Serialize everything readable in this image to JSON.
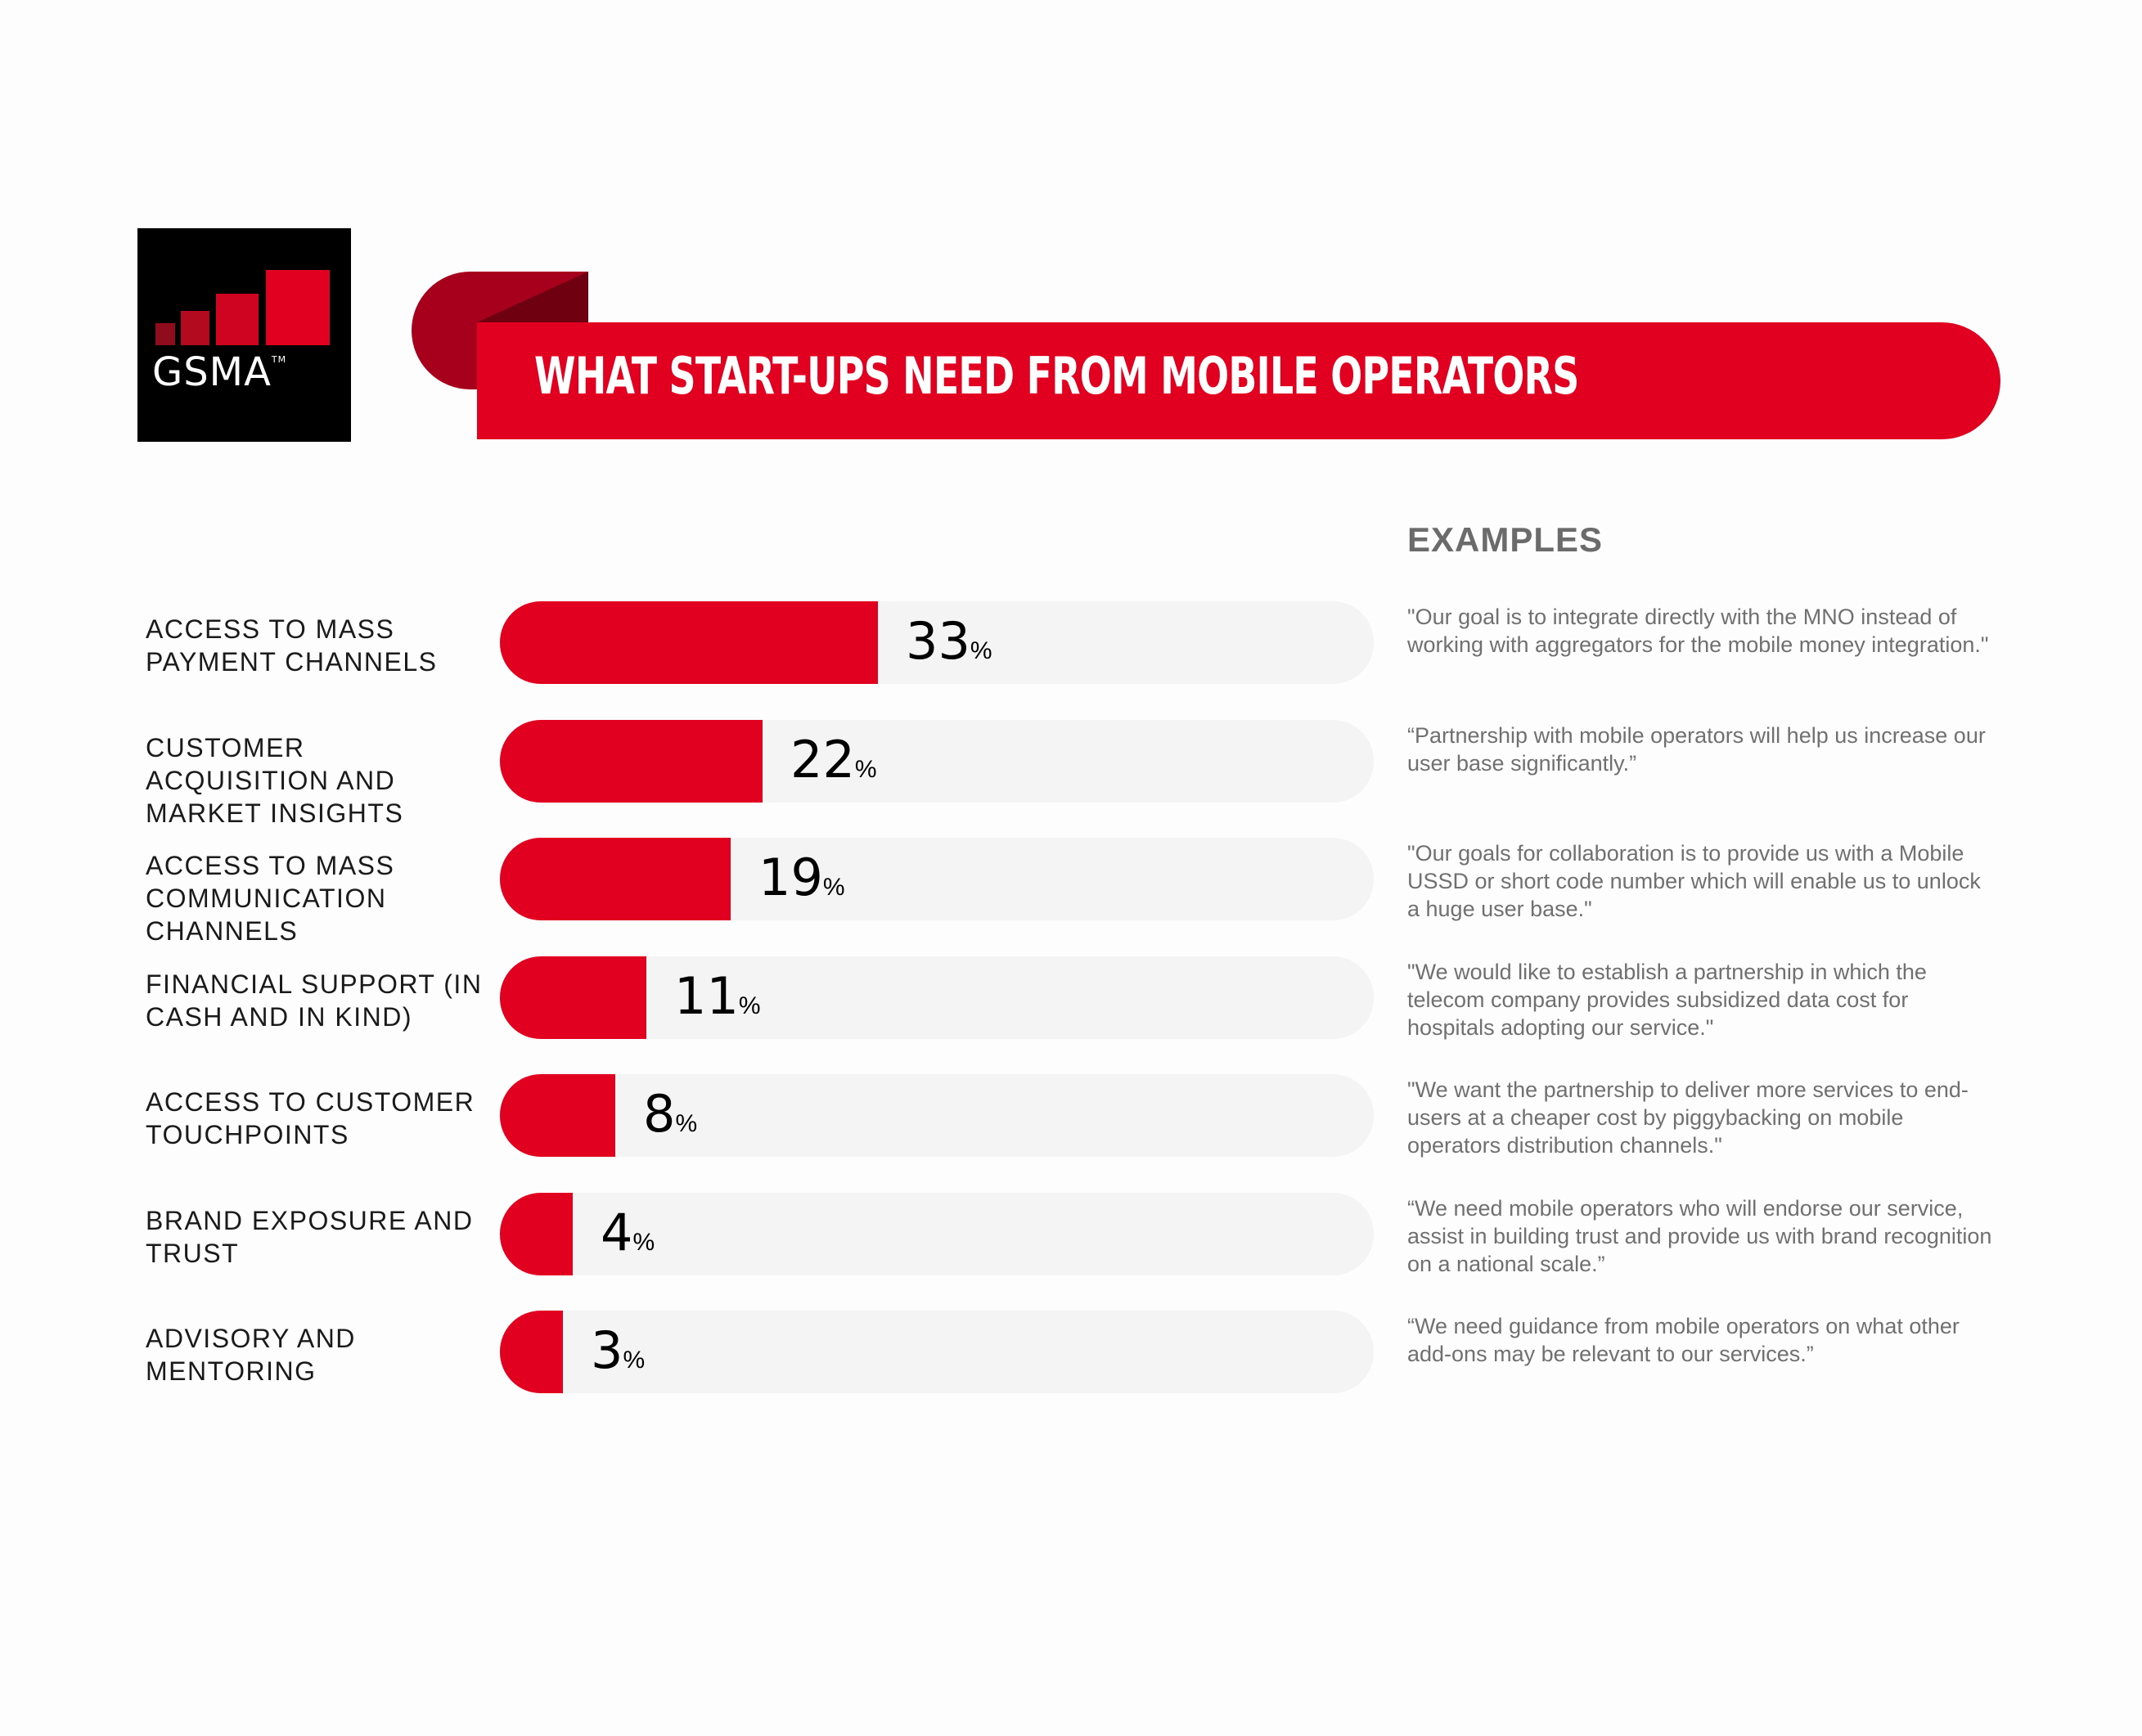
{
  "logo": {
    "text": "GSMA",
    "tm": "TM"
  },
  "banner": {
    "title": "WHAT START-UPS NEED FROM MOBILE OPERATORS"
  },
  "examples_heading": "EXAMPLES",
  "percent_symbol": "%",
  "colors": {
    "accent": "#e1001f",
    "track": "#f4f4f4",
    "logo_bg": "#000000"
  },
  "chart_data": {
    "type": "bar",
    "orientation": "horizontal",
    "title": "WHAT START-UPS NEED FROM MOBILE OPERATORS",
    "xlim": [
      0,
      100
    ],
    "categories": [
      "ACCESS TO MASS PAYMENT CHANNELS",
      "CUSTOMER ACQUISITION AND MARKET INSIGHTS",
      "ACCESS TO MASS COMMUNICATION CHANNELS",
      "FINANCIAL SUPPORT (IN CASH AND IN KIND)",
      "ACCESS TO CUSTOMER TOUCHPOINTS",
      "BRAND EXPOSURE AND TRUST",
      "ADVISORY AND MENTORING"
    ],
    "values": [
      33,
      22,
      19,
      11,
      8,
      4,
      3
    ],
    "examples": [
      "\"Our goal is to integrate directly with the MNO instead of working with aggregators for the mobile money integration.\"",
      "“Partnership with mobile operators will help us increase our user base significantly.”",
      "\"Our goals for collaboration is to provide us with a Mobile USSD or short code number which will enable us to unlock a huge user base.\"",
      "\"We would like to establish a partnership in which the telecom company provides subsidized data cost for hospitals adopting our service.\"",
      "\"We want the partnership to deliver more services to end-users at a cheaper cost by piggybacking on mobile operators distribution channels.\"",
      "“We need mobile operators who will endorse our service, assist in building trust and provide us with brand recognition on a national scale.”",
      "“We need guidance from mobile operators on what other add-ons may be relevant to our services.”"
    ]
  }
}
